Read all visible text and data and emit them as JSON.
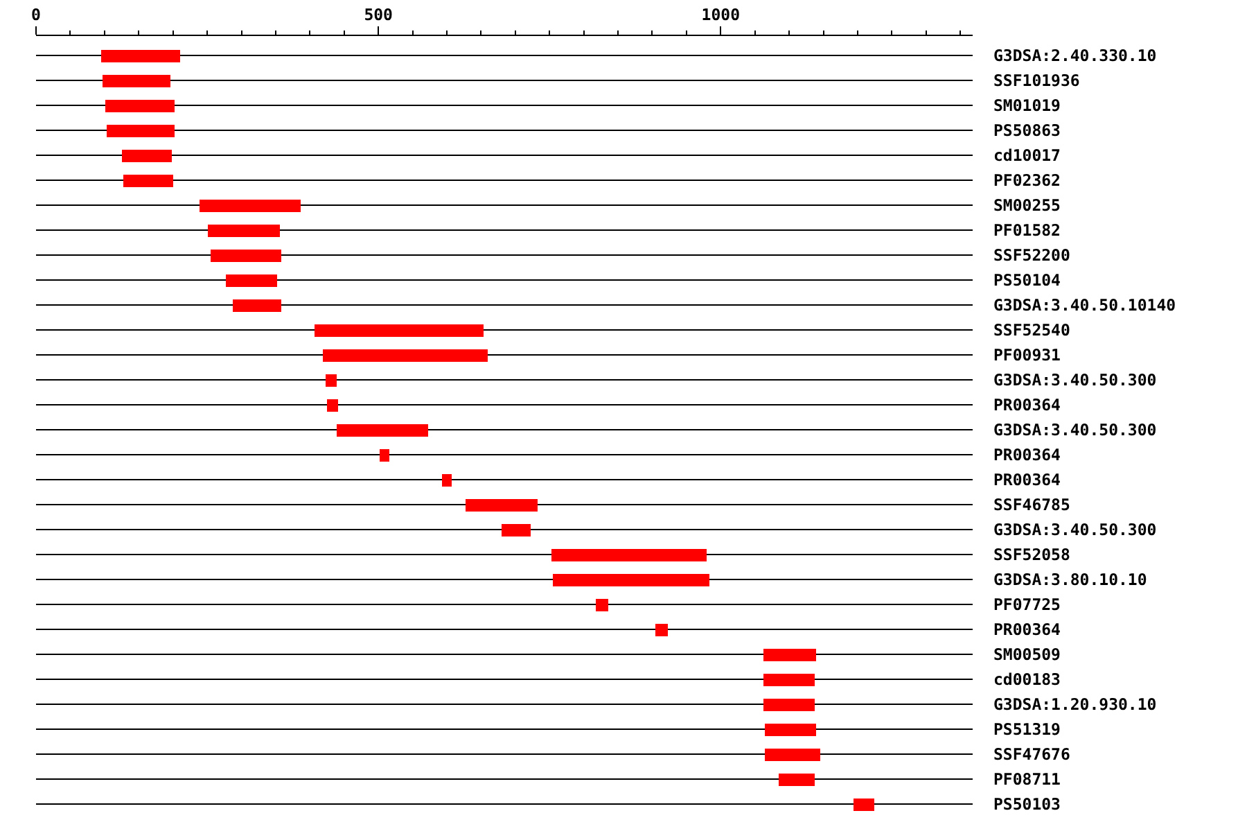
{
  "chart_data": {
    "type": "bar",
    "orientation": "horizontal",
    "categories": [
      "G3DSA:2.40.330.10",
      "SSF101936",
      "SM01019",
      "PS50863",
      "cd10017",
      "PF02362",
      "SM00255",
      "PF01582",
      "SSF52200",
      "PS50104",
      "G3DSA:3.40.50.10140",
      "SSF52540",
      "PF00931",
      "G3DSA:3.40.50.300",
      "PR00364",
      "G3DSA:3.40.50.300",
      "PR00364",
      "PR00364",
      "SSF46785",
      "G3DSA:3.40.50.300",
      "SSF52058",
      "G3DSA:3.80.10.10",
      "PF07725",
      "PR00364",
      "SM00509",
      "cd00183",
      "G3DSA:1.20.930.10",
      "PS51319",
      "SSF47676",
      "PF08711",
      "PS50103"
    ],
    "base": [
      95,
      97,
      101,
      103,
      125,
      127,
      238,
      250,
      254,
      277,
      287,
      406,
      418,
      423,
      425,
      439,
      501,
      593,
      627,
      679,
      752,
      754,
      817,
      904,
      1062,
      1062,
      1062,
      1064,
      1064,
      1084,
      1194
    ],
    "values": [
      115,
      99,
      101,
      99,
      73,
      73,
      148,
      106,
      104,
      75,
      71,
      247,
      241,
      16,
      16,
      133,
      15,
      14,
      105,
      43,
      227,
      229,
      18,
      18,
      77,
      75,
      75,
      75,
      81,
      53,
      30
    ],
    "color": "#ff0000",
    "xlim": [
      0,
      1368
    ],
    "xticks": [
      0,
      {
        "value": 50,
        "label": null
      },
      {
        "value": 100,
        "label": null
      },
      {
        "value": 150,
        "label": null
      },
      {
        "value": 200,
        "label": null
      },
      {
        "value": 250,
        "label": null
      },
      {
        "value": 300,
        "label": null
      },
      {
        "value": 350,
        "label": null
      },
      {
        "value": 400,
        "label": null
      },
      {
        "value": 450,
        "label": null
      },
      500,
      {
        "value": 550,
        "label": null
      },
      {
        "value": 600,
        "label": null
      },
      {
        "value": 650,
        "label": null
      },
      {
        "value": 700,
        "label": null
      },
      {
        "value": 750,
        "label": null
      },
      {
        "value": 800,
        "label": null
      },
      {
        "value": 850,
        "label": null
      },
      {
        "value": 900,
        "label": null
      },
      {
        "value": 950,
        "label": null
      },
      1000,
      {
        "value": 1050,
        "label": null
      },
      {
        "value": 1100,
        "label": null
      },
      {
        "value": 1150,
        "label": null
      },
      {
        "value": 1200,
        "label": null
      },
      {
        "value": 1250,
        "label": null
      },
      {
        "value": 1300,
        "label": null
      },
      {
        "value": 1350,
        "label": null
      }
    ],
    "grid": "y"
  }
}
